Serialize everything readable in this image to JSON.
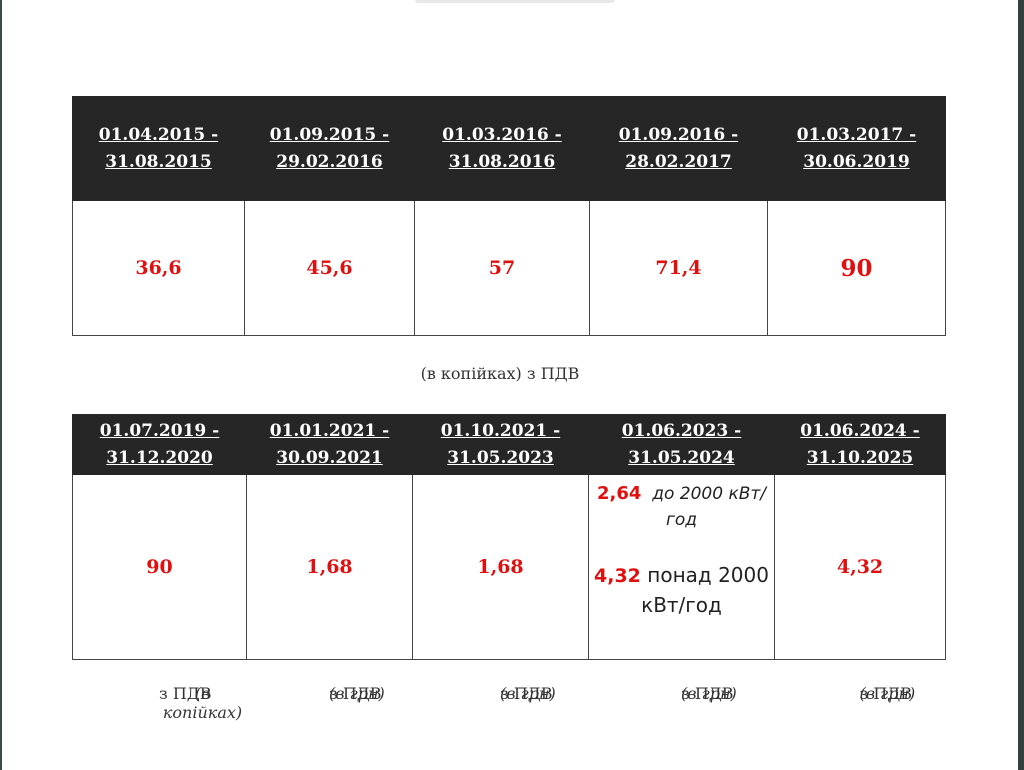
{
  "table1": {
    "headers": [
      [
        "01.04.2015 -",
        "31.08.2015"
      ],
      [
        "01.09.2015 -",
        "29.02.2016"
      ],
      [
        "01.03.2016 -",
        "31.08.2016"
      ],
      [
        "01.09.2016 -",
        "28.02.2017"
      ],
      [
        "01.03.2017 -",
        "30.06.2019"
      ]
    ],
    "values": [
      "36,6",
      "45,6",
      "57",
      "71,4",
      "90"
    ],
    "note": "(в копійках) з ПДВ"
  },
  "table2": {
    "headers": [
      [
        "01.07.2019 -",
        "31.12.2020"
      ],
      [
        "01.01.2021 -",
        "30.09.2021"
      ],
      [
        "01.10.2021 -",
        "31.05.2023"
      ],
      [
        "01.06.2023 -",
        "31.05.2024"
      ],
      [
        "01.06.2024 -",
        "31.10.2025"
      ]
    ],
    "values": [
      "90",
      "1,68",
      "1,68",
      "",
      "4,32"
    ],
    "split_cell": {
      "value_low": "2,64",
      "text_low_1": "до 2000 кВт/",
      "text_low_2": "год",
      "value_high": "4,32",
      "text_high_1": "понад 2000",
      "text_high_2": "кВт/год"
    },
    "notes": [
      {
        "prefix": "(в копійках)",
        "suffix": " з ПДВ"
      },
      {
        "prefix": "(в грн)",
        "suffix": " з ПДВ"
      },
      {
        "prefix": "(в грн)",
        "suffix": " з ПДВ"
      },
      {
        "prefix": "(в грн)",
        "suffix": " з ПДВ"
      },
      {
        "prefix": "(в грн)",
        "suffix": " з ПДВ"
      }
    ]
  }
}
